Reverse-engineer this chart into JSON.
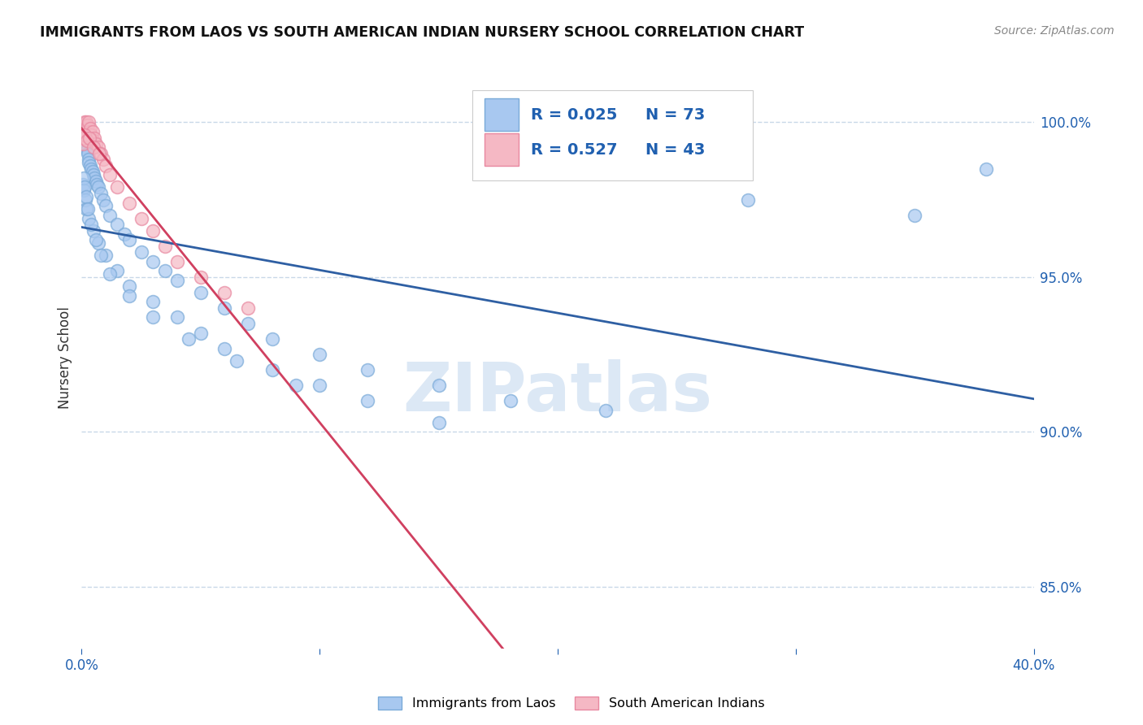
{
  "title": "IMMIGRANTS FROM LAOS VS SOUTH AMERICAN INDIAN NURSERY SCHOOL CORRELATION CHART",
  "source": "Source: ZipAtlas.com",
  "ylabel": "Nursery School",
  "xmin": 0.0,
  "xmax": 40.0,
  "ymin": 83.0,
  "ymax": 101.8,
  "yticks": [
    100.0,
    95.0,
    90.0,
    85.0
  ],
  "ytick_labels": [
    "100.0%",
    "95.0%",
    "90.0%",
    "85.0%"
  ],
  "legend_entries": [
    {
      "R": "R = 0.025",
      "N": "N = 73",
      "color": "#A8C8F0"
    },
    {
      "R": "R = 0.527",
      "N": "N = 43",
      "color": "#F5B8C4"
    }
  ],
  "blue_scatter_x": [
    0.05,
    0.08,
    0.1,
    0.12,
    0.15,
    0.18,
    0.2,
    0.22,
    0.25,
    0.28,
    0.3,
    0.35,
    0.4,
    0.45,
    0.5,
    0.55,
    0.6,
    0.65,
    0.7,
    0.8,
    0.9,
    1.0,
    1.2,
    1.5,
    1.8,
    2.0,
    2.5,
    3.0,
    3.5,
    4.0,
    5.0,
    6.0,
    7.0,
    8.0,
    10.0,
    12.0,
    15.0,
    18.0,
    22.0,
    28.0,
    35.0,
    38.0,
    0.05,
    0.1,
    0.15,
    0.2,
    0.3,
    0.5,
    0.7,
    1.0,
    1.5,
    2.0,
    3.0,
    4.0,
    5.0,
    6.0,
    8.0,
    10.0,
    12.0,
    15.0,
    0.08,
    0.12,
    0.18,
    0.25,
    0.4,
    0.6,
    0.8,
    1.2,
    2.0,
    3.0,
    4.5,
    6.5,
    9.0
  ],
  "blue_scatter_y": [
    99.5,
    99.3,
    99.6,
    99.4,
    99.2,
    99.5,
    99.3,
    99.1,
    99.0,
    98.8,
    98.7,
    98.6,
    98.5,
    98.4,
    98.3,
    98.2,
    98.1,
    98.0,
    97.9,
    97.7,
    97.5,
    97.3,
    97.0,
    96.7,
    96.4,
    96.2,
    95.8,
    95.5,
    95.2,
    94.9,
    94.5,
    94.0,
    93.5,
    93.0,
    92.5,
    92.0,
    91.5,
    91.0,
    90.7,
    97.5,
    97.0,
    98.5,
    98.0,
    97.8,
    97.5,
    97.2,
    96.9,
    96.5,
    96.1,
    95.7,
    95.2,
    94.7,
    94.2,
    93.7,
    93.2,
    92.7,
    92.0,
    91.5,
    91.0,
    90.3,
    98.2,
    97.9,
    97.6,
    97.2,
    96.7,
    96.2,
    95.7,
    95.1,
    94.4,
    93.7,
    93.0,
    92.3,
    91.5
  ],
  "pink_scatter_x": [
    0.05,
    0.07,
    0.08,
    0.1,
    0.12,
    0.13,
    0.15,
    0.17,
    0.18,
    0.2,
    0.22,
    0.25,
    0.28,
    0.3,
    0.33,
    0.35,
    0.38,
    0.4,
    0.45,
    0.5,
    0.55,
    0.6,
    0.7,
    0.8,
    0.9,
    1.0,
    1.2,
    1.5,
    2.0,
    2.5,
    3.0,
    3.5,
    4.0,
    5.0,
    6.0,
    7.0,
    0.06,
    0.09,
    0.14,
    0.22,
    0.32,
    0.5,
    0.75
  ],
  "pink_scatter_y": [
    99.5,
    99.6,
    99.7,
    99.8,
    99.9,
    100.0,
    99.8,
    99.9,
    100.0,
    99.7,
    99.8,
    99.9,
    100.0,
    99.6,
    99.7,
    99.8,
    99.5,
    99.6,
    99.7,
    99.4,
    99.5,
    99.3,
    99.2,
    99.0,
    98.8,
    98.6,
    98.3,
    97.9,
    97.4,
    96.9,
    96.5,
    96.0,
    95.5,
    95.0,
    94.5,
    94.0,
    99.3,
    99.5,
    99.6,
    99.4,
    99.5,
    99.2,
    99.0
  ],
  "blue_color": "#A8C8F0",
  "blue_edge_color": "#7AAAD8",
  "pink_color": "#F5B8C4",
  "pink_edge_color": "#E888A0",
  "blue_line_color": "#2E5FA3",
  "pink_line_color": "#D04060",
  "grid_color": "#C8D8E8",
  "watermark_color": "#DCE8F5",
  "background_color": "#FFFFFF",
  "axis_color": "#2060B0",
  "title_color": "#111111",
  "source_color": "#888888",
  "ylabel_color": "#333333"
}
